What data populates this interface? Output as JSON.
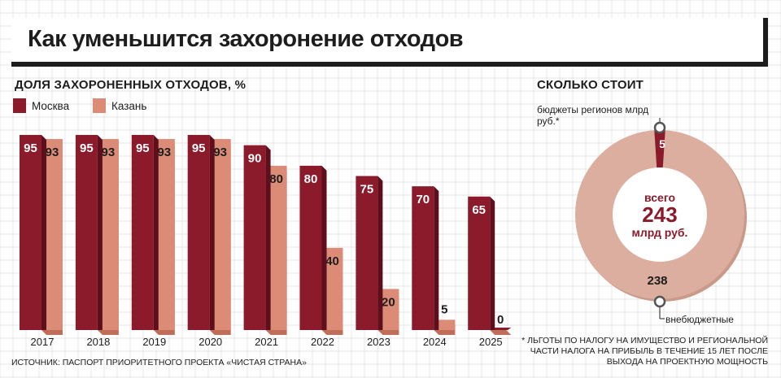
{
  "title": "Как уменьшится захоронение отходов",
  "source": "ИСТОЧНИК: ПАСПОРТ ПРИОРИТЕТНОГО ПРОЕКТА «ЧИСТАЯ СТРАНА»",
  "footnote": "* ЛЬГОТЫ ПО НАЛОГУ НА ИМУЩЕСТВО И РЕГИОНАЛЬНОЙ ЧАСТИ НАЛОГА НА ПРИБЫЛЬ В ТЕЧЕНИЕ 15 ЛЕТ ПОСЛЕ ВЫХОДА НА ПРОЕКТНУЮ МОЩНОСТЬ",
  "colors": {
    "moscow": "#8b1a2b",
    "moscow_dark": "#5e0f1c",
    "kazan": "#dc8b76",
    "kazan_dark": "#c06d58",
    "donut": "#dcae9f",
    "grid": "#dedede"
  },
  "chart_data": [
    {
      "type": "bar",
      "title": "ДОЛЯ ЗАХОРОНЕННЫХ ОТХОДОВ, %",
      "categories": [
        "2017",
        "2018",
        "2019",
        "2020",
        "2021",
        "2022",
        "2023",
        "2024",
        "2025"
      ],
      "series": [
        {
          "name": "Москва",
          "values": [
            95,
            95,
            95,
            95,
            90,
            80,
            75,
            70,
            65
          ]
        },
        {
          "name": "Казань",
          "values": [
            93,
            93,
            93,
            93,
            80,
            40,
            20,
            5,
            0
          ]
        }
      ],
      "ylim": [
        0,
        100
      ],
      "grid": false,
      "legend": "top-left"
    },
    {
      "type": "pie",
      "title": "СКОЛЬКО СТОИТ",
      "center_label": [
        "всего",
        "243",
        "млрд руб."
      ],
      "labels": [
        "бюджеты регионов млрд руб.*",
        "внебюджетные"
      ],
      "values": [
        5,
        238
      ]
    }
  ]
}
